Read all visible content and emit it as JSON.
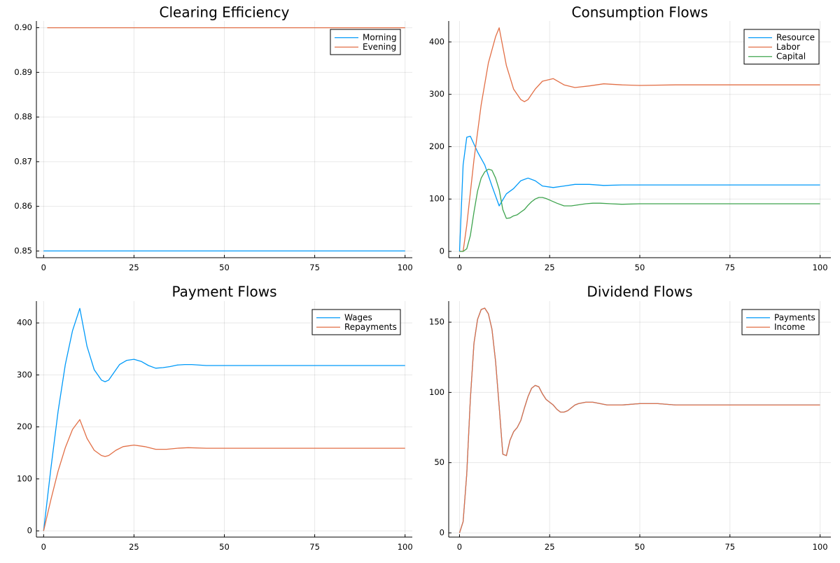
{
  "colors": {
    "series1": "#009af9",
    "series2": "#e26f46",
    "series3": "#3ea44e"
  },
  "chart_data": [
    {
      "type": "line",
      "title": "Clearing Efficiency",
      "xlim": [
        -2,
        102
      ],
      "ylim": [
        0.8485,
        0.9015
      ],
      "xticks": [
        0,
        25,
        50,
        75,
        100
      ],
      "yticks": [
        0.85,
        0.86,
        0.87,
        0.88,
        0.89,
        0.9
      ],
      "ytick_labels": [
        "0.85",
        "0.86",
        "0.87",
        "0.88",
        "0.89",
        "0.90"
      ],
      "grid": true,
      "legend": "top-right",
      "series": [
        {
          "name": "Morning",
          "x": [
            0,
            100
          ],
          "y": [
            0.85,
            0.85
          ]
        },
        {
          "name": "Evening",
          "x": [
            1,
            100
          ],
          "y": [
            0.9,
            0.9
          ]
        }
      ]
    },
    {
      "type": "line",
      "title": "Consumption Flows",
      "xlim": [
        -3,
        103
      ],
      "ylim": [
        -12,
        440
      ],
      "xticks": [
        0,
        25,
        50,
        75,
        100
      ],
      "yticks": [
        0,
        100,
        200,
        300,
        400
      ],
      "ytick_labels": [
        "0",
        "100",
        "200",
        "300",
        "400"
      ],
      "grid": true,
      "legend": "top-right",
      "series": [
        {
          "name": "Resource",
          "x": [
            0,
            1,
            2,
            3,
            5,
            7,
            9,
            11,
            13,
            15,
            17,
            19,
            21,
            23,
            26,
            29,
            32,
            36,
            40,
            45,
            50,
            60,
            70,
            80,
            90,
            100
          ],
          "y": [
            0,
            165,
            218,
            220,
            190,
            165,
            125,
            87,
            110,
            120,
            135,
            140,
            135,
            125,
            122,
            125,
            128,
            128,
            126,
            127,
            127,
            127,
            127,
            127,
            127,
            127
          ]
        },
        {
          "name": "Labor",
          "x": [
            0,
            1,
            2,
            4,
            6,
            8,
            10,
            11,
            13,
            15,
            17,
            18,
            19,
            21,
            23,
            26,
            29,
            32,
            36,
            40,
            45,
            50,
            60,
            70,
            80,
            90,
            100
          ],
          "y": [
            0,
            0,
            50,
            175,
            280,
            360,
            410,
            427,
            355,
            310,
            290,
            286,
            290,
            310,
            325,
            330,
            318,
            313,
            316,
            320,
            318,
            317,
            318,
            318,
            318,
            318,
            318
          ]
        },
        {
          "name": "Capital",
          "x": [
            0,
            1,
            2,
            3,
            4,
            5,
            6,
            7,
            8,
            9,
            10,
            11,
            12,
            13,
            14,
            15,
            16,
            17,
            18,
            19,
            20,
            21,
            22,
            23,
            24,
            25,
            27,
            29,
            31,
            33,
            35,
            37,
            39,
            42,
            45,
            50,
            60,
            70,
            80,
            90,
            100
          ],
          "y": [
            0,
            0,
            5,
            30,
            75,
            115,
            140,
            152,
            157,
            155,
            140,
            118,
            80,
            63,
            64,
            68,
            70,
            75,
            80,
            88,
            95,
            100,
            103,
            103,
            101,
            98,
            92,
            87,
            87,
            89,
            91,
            92,
            92,
            91,
            90,
            91,
            91,
            91,
            91,
            91,
            91
          ]
        }
      ]
    },
    {
      "type": "line",
      "title": "Payment Flows",
      "xlim": [
        -2,
        102
      ],
      "ylim": [
        -12,
        442
      ],
      "xticks": [
        0,
        25,
        50,
        75,
        100
      ],
      "yticks": [
        0,
        100,
        200,
        300,
        400
      ],
      "ytick_labels": [
        "0",
        "100",
        "200",
        "300",
        "400"
      ],
      "grid": true,
      "legend": "top-right",
      "series": [
        {
          "name": "Wages",
          "x": [
            0,
            2,
            4,
            6,
            8,
            10,
            12,
            14,
            16,
            17,
            18,
            20,
            21,
            23,
            25,
            27,
            29,
            31,
            33,
            35,
            37,
            39,
            41,
            45,
            50,
            55,
            60,
            70,
            80,
            90,
            100
          ],
          "y": [
            0,
            120,
            230,
            320,
            385,
            428,
            355,
            310,
            290,
            287,
            290,
            310,
            320,
            328,
            330,
            326,
            318,
            313,
            314,
            316,
            319,
            320,
            320,
            318,
            318,
            318,
            318,
            318,
            318,
            318,
            318
          ]
        },
        {
          "name": "Repayments",
          "x": [
            0,
            2,
            4,
            6,
            8,
            10,
            12,
            14,
            16,
            17,
            18,
            20,
            22,
            25,
            28,
            31,
            34,
            37,
            40,
            45,
            50,
            55,
            60,
            70,
            80,
            90,
            100
          ],
          "y": [
            0,
            60,
            115,
            160,
            195,
            214,
            178,
            155,
            145,
            143,
            145,
            155,
            162,
            165,
            162,
            157,
            157,
            159,
            160,
            159,
            159,
            159,
            159,
            159,
            159,
            159,
            159
          ]
        }
      ]
    },
    {
      "type": "line",
      "title": "Dividend Flows",
      "xlim": [
        -3,
        103
      ],
      "ylim": [
        -3,
        165
      ],
      "xticks": [
        0,
        25,
        50,
        75,
        100
      ],
      "yticks": [
        0,
        50,
        100,
        150
      ],
      "ytick_labels": [
        "0",
        "50",
        "100",
        "150"
      ],
      "grid": true,
      "legend": "top-right",
      "series": [
        {
          "name": "Payments",
          "x": [
            0,
            1,
            2,
            3,
            4,
            5,
            6,
            7,
            8,
            9,
            10,
            11,
            12,
            13,
            14,
            15,
            16,
            17,
            18,
            19,
            20,
            21,
            22,
            23,
            24,
            25,
            26,
            27,
            28,
            29,
            30,
            31,
            32,
            33,
            35,
            37,
            39,
            41,
            43,
            45,
            50,
            55,
            60,
            70,
            80,
            90,
            100
          ],
          "y": [
            0,
            8,
            42,
            95,
            135,
            152,
            159,
            160,
            156,
            145,
            122,
            90,
            56,
            55,
            66,
            72,
            75,
            80,
            89,
            97,
            103,
            105,
            104,
            99,
            95,
            93,
            91,
            88,
            86,
            86,
            87,
            89,
            91,
            92,
            93,
            93,
            92,
            91,
            91,
            91,
            92,
            92,
            91,
            91,
            91,
            91,
            91
          ]
        },
        {
          "name": "Income",
          "x": [
            0,
            1,
            2,
            3,
            4,
            5,
            6,
            7,
            8,
            9,
            10,
            11,
            12,
            13,
            14,
            15,
            16,
            17,
            18,
            19,
            20,
            21,
            22,
            23,
            24,
            25,
            26,
            27,
            28,
            29,
            30,
            31,
            32,
            33,
            35,
            37,
            39,
            41,
            43,
            45,
            50,
            55,
            60,
            70,
            80,
            90,
            100
          ],
          "y": [
            0,
            8,
            42,
            95,
            135,
            152,
            159,
            160,
            156,
            145,
            122,
            90,
            56,
            55,
            66,
            72,
            75,
            80,
            89,
            97,
            103,
            105,
            104,
            99,
            95,
            93,
            91,
            88,
            86,
            86,
            87,
            89,
            91,
            92,
            93,
            93,
            92,
            91,
            91,
            91,
            92,
            92,
            91,
            91,
            91,
            91,
            91
          ]
        }
      ]
    }
  ]
}
